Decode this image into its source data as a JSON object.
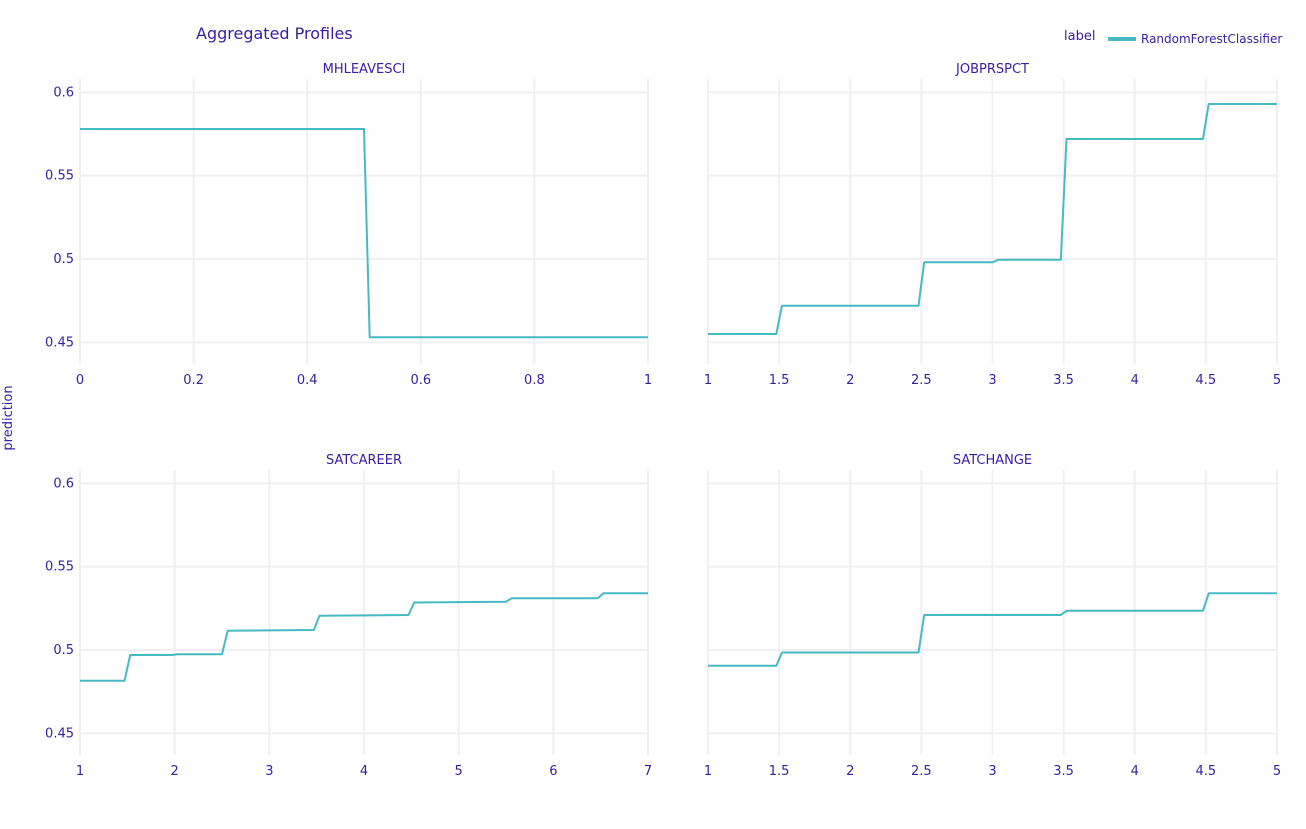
{
  "chart_data": {
    "type": "line",
    "title": "Aggregated Profiles",
    "ylabel": "prediction",
    "legend": {
      "title": "label",
      "placement": "top-right",
      "entries": [
        {
          "name": "RandomForestClassifier",
          "color": "#46bac2"
        }
      ]
    },
    "grid": true,
    "line_color": "#46bac2",
    "text_color": "#371ea3",
    "grid_color": "#f0f0f4",
    "ylim": [
      0.437,
      0.608
    ],
    "yticks": [
      0.45,
      0.5,
      0.55,
      0.6
    ],
    "ytick_labels": [
      "0.45",
      "0.5",
      "0.55",
      "0.6"
    ],
    "panels": [
      {
        "title": "MHLEAVESCI",
        "xlim": [
          0,
          1
        ],
        "xticks": [
          0,
          0.2,
          0.4,
          0.6,
          0.8,
          1
        ],
        "xtick_labels": [
          "0",
          "0.2",
          "0.4",
          "0.6",
          "0.8",
          "1"
        ],
        "series": [
          {
            "name": "RandomForestClassifier",
            "x": [
              0,
              0.5,
              0.51,
              1
            ],
            "y": [
              0.578,
              0.578,
              0.453,
              0.453
            ]
          }
        ]
      },
      {
        "title": "JOBPRSPCT",
        "xlim": [
          1,
          5
        ],
        "xticks": [
          1,
          1.5,
          2,
          2.5,
          3,
          3.5,
          4,
          4.5,
          5
        ],
        "xtick_labels": [
          "1",
          "1.5",
          "2",
          "2.5",
          "3",
          "3.5",
          "4",
          "4.5",
          "5"
        ],
        "series": [
          {
            "name": "RandomForestClassifier",
            "x": [
              1,
              1.48,
              1.52,
              2.48,
              2.52,
              3.0,
              3.04,
              3.48,
              3.52,
              4.48,
              4.52,
              5
            ],
            "y": [
              0.455,
              0.455,
              0.472,
              0.472,
              0.498,
              0.498,
              0.4995,
              0.4995,
              0.572,
              0.572,
              0.593,
              0.593
            ]
          }
        ]
      },
      {
        "title": "SATCAREER",
        "xlim": [
          1,
          7
        ],
        "xticks": [
          1,
          2,
          3,
          4,
          5,
          6,
          7
        ],
        "xtick_labels": [
          "1",
          "2",
          "3",
          "4",
          "5",
          "6",
          "7"
        ],
        "series": [
          {
            "name": "RandomForestClassifier",
            "x": [
              1,
              1.47,
              1.53,
              1.97,
              2.03,
              2.5,
              2.56,
              3.47,
              3.53,
              4.47,
              4.53,
              5.5,
              5.56,
              6.47,
              6.53,
              7
            ],
            "y": [
              0.4815,
              0.4815,
              0.497,
              0.497,
              0.4975,
              0.4975,
              0.5115,
              0.512,
              0.5205,
              0.521,
              0.5285,
              0.529,
              0.531,
              0.531,
              0.534,
              0.534
            ]
          }
        ]
      },
      {
        "title": "SATCHANGE",
        "xlim": [
          1,
          5
        ],
        "xticks": [
          1,
          1.5,
          2,
          2.5,
          3,
          3.5,
          4,
          4.5,
          5
        ],
        "xtick_labels": [
          "1",
          "1.5",
          "2",
          "2.5",
          "3",
          "3.5",
          "4",
          "4.5",
          "5"
        ],
        "series": [
          {
            "name": "RandomForestClassifier",
            "x": [
              1,
              1.48,
              1.52,
              2.48,
              2.52,
              3.48,
              3.52,
              4.48,
              4.52,
              5
            ],
            "y": [
              0.4905,
              0.4905,
              0.4985,
              0.4985,
              0.521,
              0.521,
              0.5235,
              0.5235,
              0.534,
              0.534
            ]
          }
        ]
      }
    ]
  }
}
